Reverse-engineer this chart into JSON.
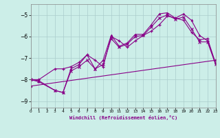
{
  "xlabel": "Windchill (Refroidissement éolien,°C)",
  "background_color": "#cceee8",
  "grid_color": "#aacccc",
  "line_color": "#880088",
  "xlim": [
    0,
    23
  ],
  "ylim": [
    -9.3,
    -4.5
  ],
  "yticks": [
    -9,
    -8,
    -7,
    -6,
    -5
  ],
  "xticks": [
    0,
    1,
    2,
    3,
    4,
    5,
    6,
    7,
    8,
    9,
    10,
    11,
    12,
    13,
    14,
    15,
    16,
    17,
    18,
    19,
    20,
    21,
    22,
    23
  ],
  "series1_x": [
    0,
    1,
    3,
    4,
    5,
    6,
    7,
    8,
    9,
    10,
    11,
    12,
    13,
    14,
    15,
    16,
    17,
    18,
    19,
    20,
    21,
    22,
    23
  ],
  "series1_y": [
    -8.0,
    -8.0,
    -7.5,
    -7.5,
    -7.4,
    -7.2,
    -6.85,
    -7.1,
    -7.4,
    -6.0,
    -6.2,
    -6.5,
    -6.2,
    -5.95,
    -5.75,
    -5.45,
    -5.05,
    -5.15,
    -5.25,
    -5.8,
    -6.15,
    -6.1,
    -7.25
  ],
  "series2_x": [
    0,
    1,
    3,
    4,
    5,
    6,
    7,
    8,
    9,
    10,
    11,
    12,
    13,
    14,
    15,
    16,
    17,
    18,
    19,
    20,
    21,
    22,
    23
  ],
  "series2_y": [
    -8.0,
    -8.1,
    -8.5,
    -8.6,
    -7.5,
    -7.3,
    -6.85,
    -7.5,
    -7.1,
    -5.95,
    -6.45,
    -6.3,
    -5.9,
    -5.9,
    -5.45,
    -4.95,
    -4.9,
    -5.15,
    -4.95,
    -5.25,
    -5.95,
    -6.2,
    -7.25
  ],
  "series3_x": [
    0,
    1,
    3,
    4,
    5,
    6,
    7,
    8,
    9,
    10,
    11,
    12,
    13,
    14,
    15,
    16,
    17,
    18,
    19,
    20,
    21,
    22,
    23
  ],
  "series3_y": [
    -8.0,
    -8.05,
    -8.5,
    -8.6,
    -7.6,
    -7.4,
    -7.1,
    -7.5,
    -7.3,
    -6.1,
    -6.5,
    -6.35,
    -6.0,
    -5.95,
    -5.55,
    -5.15,
    -5.0,
    -5.2,
    -5.1,
    -5.65,
    -6.25,
    -6.25,
    -7.3
  ],
  "trend_x": [
    0,
    23
  ],
  "trend_y": [
    -8.3,
    -7.1
  ]
}
